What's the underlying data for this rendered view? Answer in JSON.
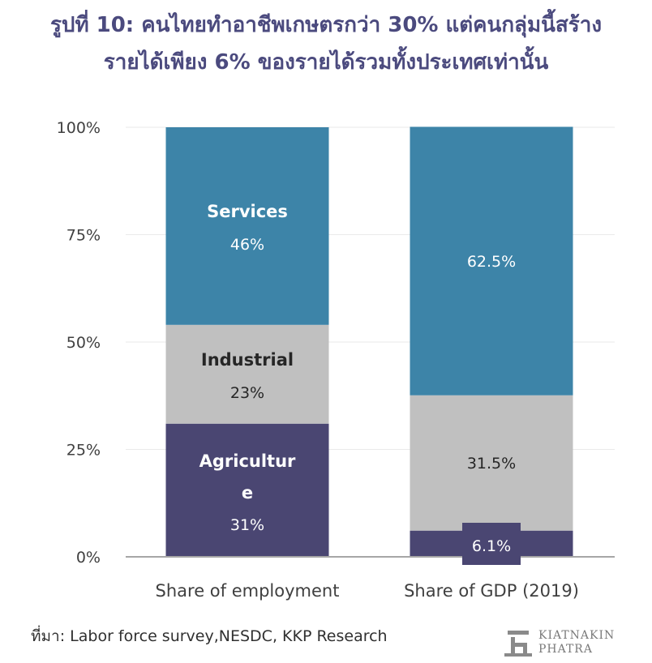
{
  "title": {
    "line1": "รูปที่ 10: คนไทยทำอาชีพเกษตรกว่า 30% แต่คนกลุ่มนี้สร้าง",
    "line2": "รายได้เพียง 6% ของรายได้รวมทั้งประเทศเท่านั้น"
  },
  "source": "ที่มา: Labor force survey,NESDC, KKP Research",
  "logo": {
    "line1": "KIATNAKIN",
    "line2": "PHATRA",
    "icon": "kiatnakin-phatra-logo-icon"
  },
  "colors": {
    "agriculture": "#4a4672",
    "industrial": "#c0c0c0",
    "services": "#3d84a8",
    "title": "#4b4a7e",
    "axis": "#a6a6a6",
    "grid": "#eaeaea"
  },
  "chart_data": {
    "type": "bar",
    "stacked": true,
    "categories": [
      "Share of employment",
      "Share of GDP (2019)"
    ],
    "series": [
      {
        "name": "Agricultur e",
        "values": [
          31,
          6.1
        ],
        "labels": [
          "31%",
          "6.1%"
        ]
      },
      {
        "name": "Industrial",
        "values": [
          23,
          31.5
        ],
        "labels": [
          "23%",
          "31.5%"
        ]
      },
      {
        "name": "Services",
        "values": [
          46,
          62.5
        ],
        "labels": [
          "46%",
          "62.5%"
        ]
      }
    ],
    "segment_names_shown": [
      "Agricultur e",
      "Industrial",
      "Services"
    ],
    "yticks": [
      "0%",
      "25%",
      "50%",
      "75%",
      "100%"
    ],
    "ylim": [
      0,
      100
    ],
    "grid": true,
    "legend": "none"
  }
}
